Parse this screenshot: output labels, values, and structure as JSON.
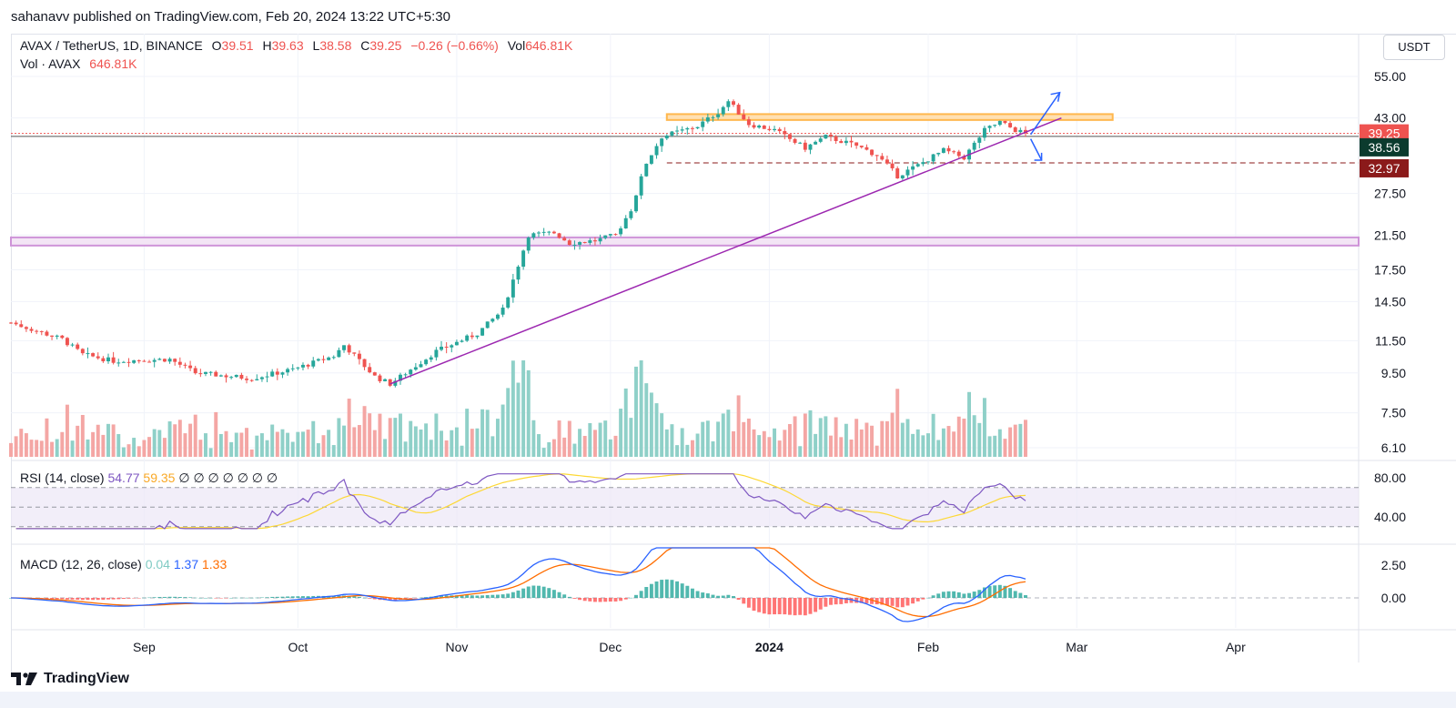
{
  "header": {
    "publish_line": "sahanavv published on TradingView.com, Feb 20, 2024 13:22 UTC+5:30"
  },
  "legend": {
    "symbol": "AVAX / TetherUS, 1D, BINANCE",
    "open_label": "O",
    "open": "39.51",
    "high_label": "H",
    "high": "39.63",
    "low_label": "L",
    "low": "38.58",
    "close_label": "C",
    "close": "39.25",
    "change": "−0.26 (−0.66%)",
    "vol_label": "Vol",
    "vol": "646.81K",
    "vol_line_label": "Vol · AVAX",
    "vol_line_value": "646.81K"
  },
  "currency": "USDT",
  "rsi": {
    "label": "RSI (14, close)",
    "value": "54.77",
    "ma": "59.35",
    "extras": "∅ ∅ ∅ ∅ ∅ ∅ ∅"
  },
  "macd": {
    "label": "MACD (12, 26, close)",
    "hist": "0.04",
    "macd": "1.37",
    "signal": "1.33"
  },
  "footer": {
    "brand": "TradingView"
  },
  "colors": {
    "up": "#26a69a",
    "down": "#ef5350",
    "trendline": "#9c27b0",
    "resistance": "#ffb74d",
    "support_band": "#ce93d8",
    "arrow": "#2962ff",
    "rsi_line": "#7e57c2",
    "rsi_ma": "#fdd835",
    "macd_line": "#2962ff",
    "signal_line": "#ff6d00"
  },
  "chart_data": {
    "type": "candlestick",
    "price_axis_labels": [
      "55.00",
      "43.00",
      "27.50",
      "21.50",
      "17.50",
      "14.50",
      "11.50",
      "9.50",
      "7.50",
      "6.10"
    ],
    "price_scale": "log",
    "price_badges": [
      {
        "value": "39.25",
        "color": "#ef5350"
      },
      {
        "value": "38.56",
        "color": "#0b3b2e"
      },
      {
        "value": "32.97",
        "color": "#8b1a1a"
      }
    ],
    "time_labels": [
      "Sep",
      "Oct",
      "Nov",
      "Dec",
      "2024",
      "Feb",
      "Mar",
      "Apr"
    ],
    "resistance_zone": [
      42.5,
      44.0
    ],
    "support_zone": [
      20.2,
      21.2
    ],
    "dashed_support": 32.97,
    "trendline": {
      "from": {
        "date": "2023-10-19",
        "price": 8.9
      },
      "to": {
        "date": "2024-02-27",
        "price": 43.0
      }
    },
    "x_range": [
      "2023-08-06",
      "2024-04-25"
    ],
    "anchor_points": [
      [
        "2023-08-06",
        12.8
      ],
      [
        "2023-08-16",
        11.6
      ],
      [
        "2023-08-20",
        10.6
      ],
      [
        "2023-08-26",
        10.2
      ],
      [
        "2023-09-06",
        10.3
      ],
      [
        "2023-09-11",
        9.5
      ],
      [
        "2023-09-22",
        9.2
      ],
      [
        "2023-09-30",
        9.7
      ],
      [
        "2023-10-08",
        10.5
      ],
      [
        "2023-10-10",
        11.2
      ],
      [
        "2023-10-16",
        9.3
      ],
      [
        "2023-10-19",
        8.9
      ],
      [
        "2023-10-28",
        10.8
      ],
      [
        "2023-11-05",
        12.0
      ],
      [
        "2023-11-10",
        13.8
      ],
      [
        "2023-11-13",
        18.0
      ],
      [
        "2023-11-15",
        21.5
      ],
      [
        "2023-11-20",
        21.8
      ],
      [
        "2023-11-23",
        20.5
      ],
      [
        "2023-11-28",
        20.8
      ],
      [
        "2023-12-02",
        21.5
      ],
      [
        "2023-12-05",
        25.0
      ],
      [
        "2023-12-08",
        33.0
      ],
      [
        "2023-12-11",
        38.5
      ],
      [
        "2023-12-18",
        41.0
      ],
      [
        "2023-12-22",
        44.5
      ],
      [
        "2023-12-24",
        47.5
      ],
      [
        "2023-12-28",
        41.5
      ],
      [
        "2024-01-02",
        40.0
      ],
      [
        "2024-01-08",
        36.0
      ],
      [
        "2024-01-12",
        38.5
      ],
      [
        "2024-01-18",
        36.5
      ],
      [
        "2024-01-22",
        34.5
      ],
      [
        "2024-01-26",
        30.5
      ],
      [
        "2024-01-30",
        32.5
      ],
      [
        "2024-02-04",
        35.5
      ],
      [
        "2024-02-08",
        34.0
      ],
      [
        "2024-02-12",
        40.0
      ],
      [
        "2024-02-15",
        42.0
      ],
      [
        "2024-02-18",
        40.0
      ],
      [
        "2024-02-20",
        39.25
      ]
    ],
    "volume_scale": "relative, last bar 646.81K",
    "rsi_axis": [
      "80.00",
      "40.00"
    ],
    "macd_axis": [
      "2.50",
      "0.00"
    ]
  }
}
